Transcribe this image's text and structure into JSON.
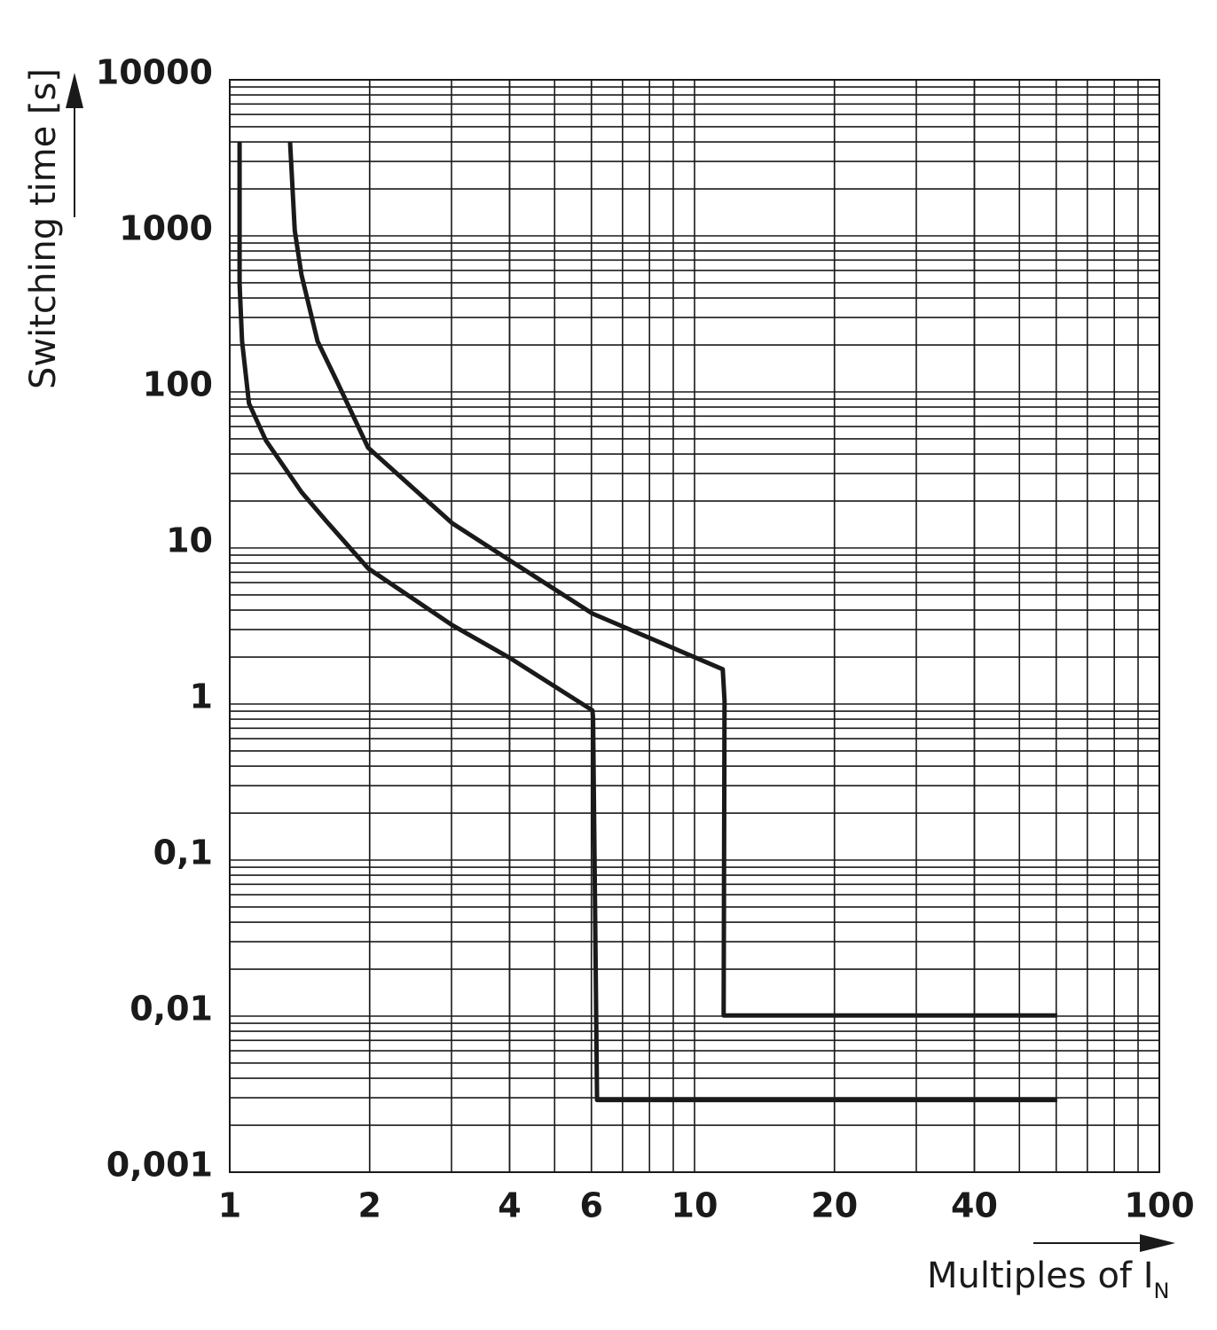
{
  "chart_data": {
    "type": "line",
    "ylabel": "Switching time [s]",
    "xlabel": "Multiples of I",
    "xlabel_subscript": "N",
    "xscale": "log",
    "yscale": "log",
    "grid": true,
    "xlim": [
      1,
      100
    ],
    "ylim": [
      0.001,
      10000
    ],
    "xticks": [
      1,
      2,
      4,
      6,
      10,
      20,
      40,
      100
    ],
    "yticks": [
      {
        "value": 0.001,
        "label": "0,001"
      },
      {
        "value": 0.01,
        "label": "0,01"
      },
      {
        "value": 0.1,
        "label": "0,1"
      },
      1,
      10,
      100,
      1000,
      10000
    ],
    "series": [
      {
        "color": "#1a1a1a",
        "x": [
          1.05,
          1.05,
          1.063,
          1.1,
          1.197,
          1.427,
          1.615,
          1.985,
          3.01,
          4.01,
          6.03,
          6.05,
          6.17,
          60.3
        ],
        "values": [
          4000,
          493,
          211,
          84.4,
          48.7,
          22.8,
          14.8,
          7.4,
          3.2,
          1.97,
          0.91,
          0.81,
          0.0029,
          0.0029
        ]
      },
      {
        "color": "#1a1a1a",
        "x": [
          1.348,
          1.38,
          1.427,
          1.545,
          1.7,
          1.985,
          3.01,
          4.01,
          6.03,
          11.5,
          11.6,
          11.55,
          60.3
        ],
        "values": [
          4000,
          1081,
          562,
          211,
          117,
          43.9,
          14.4,
          8.3,
          3.8,
          1.67,
          1.05,
          0.0101,
          0.0101
        ]
      }
    ]
  }
}
